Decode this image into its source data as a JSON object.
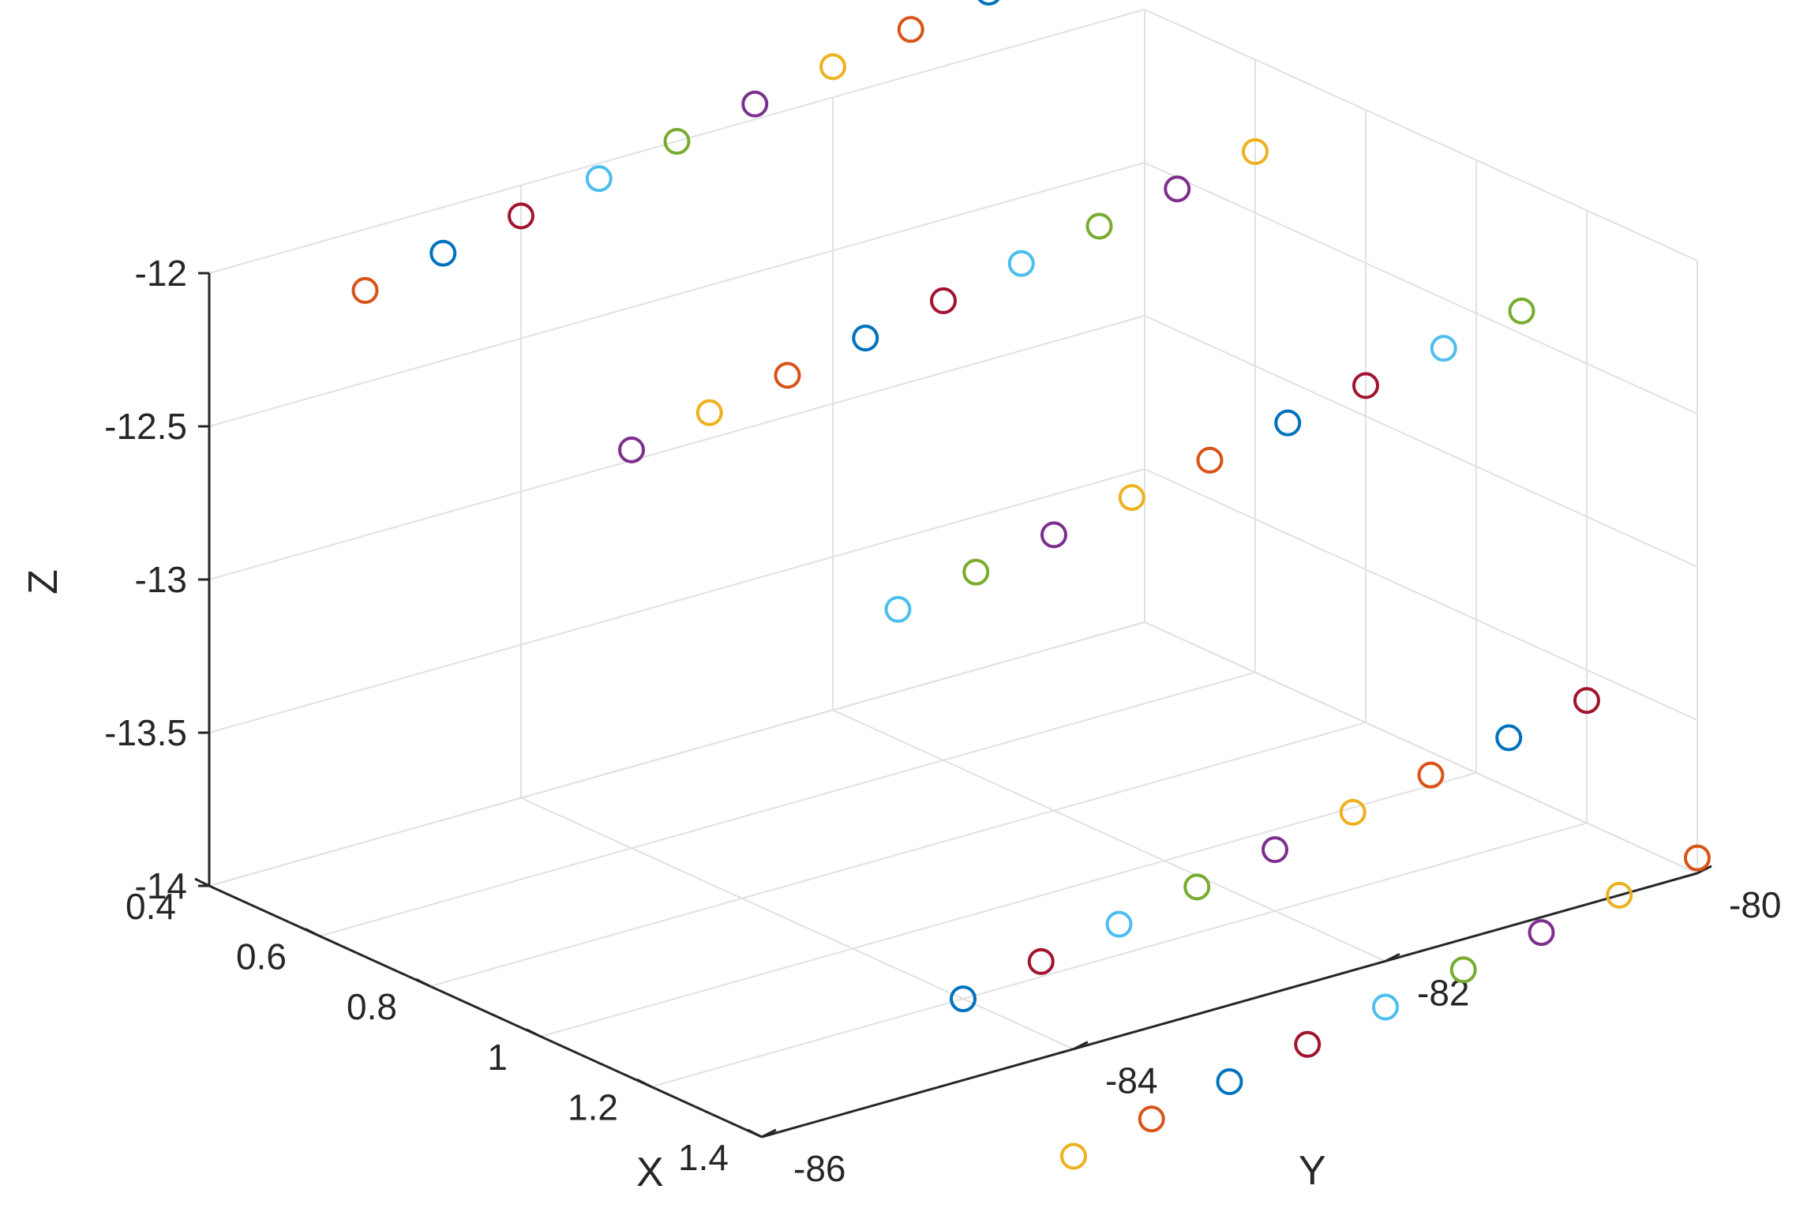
{
  "chart_data": {
    "type": "scatter3d",
    "title": "",
    "xlabel": "X",
    "ylabel": "Y",
    "zlabel": "Z",
    "xlim": [
      0.4,
      1.4
    ],
    "ylim": [
      -86,
      -80
    ],
    "zlim": [
      -14,
      -12
    ],
    "xticks": [
      "0.4",
      "0.6",
      "0.8",
      "1",
      "1.2",
      "1.4"
    ],
    "yticks": [
      "-86",
      "-84",
      "-82",
      "-80"
    ],
    "zticks": [
      "-14",
      "-13.5",
      "-13",
      "-12.5",
      "-12"
    ],
    "grid": true,
    "colors": [
      "#0072BD",
      "#D95319",
      "#EDB120",
      "#7E2F8E",
      "#77AC30",
      "#4DBEEE",
      "#A2142F"
    ],
    "points": [
      {
        "x": 0.4,
        "y": -85.0,
        "z": -12.2,
        "color": "#D95319"
      },
      {
        "x": 0.4,
        "y": -84.5,
        "z": -12.15,
        "color": "#0072BD"
      },
      {
        "x": 0.4,
        "y": -84.0,
        "z": -12.1,
        "color": "#A2142F"
      },
      {
        "x": 0.4,
        "y": -83.5,
        "z": -12.05,
        "color": "#4DBEEE"
      },
      {
        "x": 0.4,
        "y": -83.0,
        "z": -12.0,
        "color": "#77AC30"
      },
      {
        "x": 0.4,
        "y": -82.5,
        "z": -11.95,
        "color": "#7E2F8E"
      },
      {
        "x": 0.4,
        "y": -82.0,
        "z": -11.9,
        "color": "#EDB120"
      },
      {
        "x": 0.4,
        "y": -81.5,
        "z": -11.85,
        "color": "#D95319"
      },
      {
        "x": 0.4,
        "y": -81.0,
        "z": -11.8,
        "color": "#0072BD"
      },
      {
        "x": 0.6,
        "y": -84.0,
        "z": -12.7,
        "color": "#7E2F8E"
      },
      {
        "x": 0.6,
        "y": -83.5,
        "z": -12.65,
        "color": "#EDB120"
      },
      {
        "x": 0.6,
        "y": -83.0,
        "z": -12.6,
        "color": "#D95319"
      },
      {
        "x": 0.6,
        "y": -82.5,
        "z": -12.55,
        "color": "#0072BD"
      },
      {
        "x": 0.6,
        "y": -82.0,
        "z": -12.5,
        "color": "#A2142F"
      },
      {
        "x": 0.6,
        "y": -81.5,
        "z": -12.45,
        "color": "#4DBEEE"
      },
      {
        "x": 0.6,
        "y": -81.0,
        "z": -12.4,
        "color": "#77AC30"
      },
      {
        "x": 0.6,
        "y": -80.5,
        "z": -12.35,
        "color": "#7E2F8E"
      },
      {
        "x": 0.6,
        "y": -80.0,
        "z": -12.3,
        "color": "#EDB120"
      },
      {
        "x": 0.8,
        "y": -83.0,
        "z": -13.2,
        "color": "#4DBEEE"
      },
      {
        "x": 0.8,
        "y": -82.5,
        "z": -13.15,
        "color": "#77AC30"
      },
      {
        "x": 0.8,
        "y": -82.0,
        "z": -13.1,
        "color": "#7E2F8E"
      },
      {
        "x": 0.8,
        "y": -81.5,
        "z": -13.05,
        "color": "#EDB120"
      },
      {
        "x": 0.8,
        "y": -81.0,
        "z": -13.0,
        "color": "#D95319"
      },
      {
        "x": 0.8,
        "y": -80.5,
        "z": -12.95,
        "color": "#0072BD"
      },
      {
        "x": 0.8,
        "y": -80.0,
        "z": -12.9,
        "color": "#A2142F"
      },
      {
        "x": 0.8,
        "y": -79.5,
        "z": -12.85,
        "color": "#4DBEEE"
      },
      {
        "x": 0.8,
        "y": -79.0,
        "z": -12.8,
        "color": "#77AC30"
      },
      {
        "x": 1.2,
        "y": -84.0,
        "z": -14.0,
        "color": "#0072BD"
      },
      {
        "x": 1.2,
        "y": -83.5,
        "z": -13.95,
        "color": "#A2142F"
      },
      {
        "x": 1.2,
        "y": -83.0,
        "z": -13.9,
        "color": "#4DBEEE"
      },
      {
        "x": 1.2,
        "y": -82.5,
        "z": -13.85,
        "color": "#77AC30"
      },
      {
        "x": 1.2,
        "y": -82.0,
        "z": -13.8,
        "color": "#7E2F8E"
      },
      {
        "x": 1.2,
        "y": -81.5,
        "z": -13.75,
        "color": "#EDB120"
      },
      {
        "x": 1.2,
        "y": -81.0,
        "z": -13.7,
        "color": "#D95319"
      },
      {
        "x": 1.2,
        "y": -80.5,
        "z": -13.65,
        "color": "#0072BD"
      },
      {
        "x": 1.2,
        "y": -80.0,
        "z": -13.6,
        "color": "#A2142F"
      },
      {
        "x": 1.4,
        "y": -84.0,
        "z": -14.35,
        "color": "#EDB120"
      },
      {
        "x": 1.4,
        "y": -83.5,
        "z": -14.3,
        "color": "#D95319"
      },
      {
        "x": 1.4,
        "y": -83.0,
        "z": -14.25,
        "color": "#0072BD"
      },
      {
        "x": 1.4,
        "y": -82.5,
        "z": -14.2,
        "color": "#A2142F"
      },
      {
        "x": 1.4,
        "y": -82.0,
        "z": -14.15,
        "color": "#4DBEEE"
      },
      {
        "x": 1.4,
        "y": -81.5,
        "z": -14.1,
        "color": "#77AC30"
      },
      {
        "x": 1.4,
        "y": -81.0,
        "z": -14.05,
        "color": "#7E2F8E"
      },
      {
        "x": 1.4,
        "y": -80.5,
        "z": -14.0,
        "color": "#EDB120"
      },
      {
        "x": 1.4,
        "y": -80.0,
        "z": -13.95,
        "color": "#D95319"
      }
    ]
  }
}
